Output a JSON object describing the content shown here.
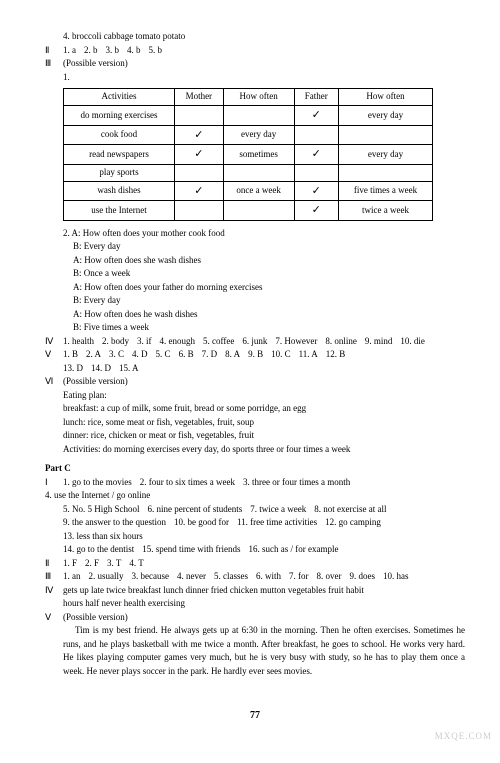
{
  "top_line": "4. broccoli   cabbage   tomato   potato",
  "sec2_label": "Ⅱ",
  "sec2_items": [
    "1. a",
    "2. b",
    "3. b",
    "4. b",
    "5. b"
  ],
  "sec3_label": "Ⅲ",
  "sec3_note": "(Possible version)",
  "sec3_num": "1.",
  "table": {
    "headers": [
      "Activities",
      "Mother",
      "How often",
      "Father",
      "How often"
    ],
    "rows": [
      [
        "do morning exercises",
        "",
        "",
        "✓",
        "every day"
      ],
      [
        "cook food",
        "✓",
        "every day",
        "",
        ""
      ],
      [
        "read newspapers",
        "✓",
        "sometimes",
        "✓",
        "every day"
      ],
      [
        "play sports",
        "",
        "",
        "",
        ""
      ],
      [
        "wash dishes",
        "✓",
        "once a week",
        "✓",
        "five times a week"
      ],
      [
        "use the Internet",
        "",
        "",
        "✓",
        "twice a week"
      ]
    ]
  },
  "dialog_num": "2.",
  "dialog_lines": [
    "A: How often does your mother cook food",
    "B: Every day",
    "A: How often does she wash dishes",
    "B: Once a week",
    "A: How often does your father do morning exercises",
    "B: Every day",
    "A: How often does he wash dishes",
    "B: Five times a week"
  ],
  "sec4_label": "Ⅳ",
  "sec4_items": [
    "1. health",
    "2. body",
    "3. if",
    "4. enough",
    "5. coffee",
    "6. junk",
    "7. However",
    "8. online",
    "9. mind",
    "10. die"
  ],
  "sec5_label": "Ⅴ",
  "sec5_items": [
    "1. B",
    "2. A",
    "3. C",
    "4. D",
    "5. C",
    "6. B",
    "7. D",
    "8. A",
    "9. B",
    "10. C",
    "11. A",
    "12. B",
    "13. D",
    "14. D",
    "15. A"
  ],
  "sec6_label": "Ⅵ",
  "sec6_note": "(Possible version)",
  "sec6_lines": [
    "Eating plan:",
    "breakfast: a cup of milk, some fruit, bread or some porridge, an egg",
    "lunch: rice, some meat or fish, vegetables, fruit, soup",
    "dinner: rice, chicken or meat or fish, vegetables, fruit",
    "Activities: do morning exercises every day, do sports three or four times a week"
  ],
  "partc": "Part C",
  "c1_label": "Ⅰ",
  "c1_items": [
    "1. go to the movies",
    "2. four to six times a week",
    "3. three or four times a month",
    "4. use the Internet / go online",
    "5. No. 5 High School",
    "6. nine percent of students",
    "7. twice a week",
    "8. not exercise at all",
    "9. the answer to the question",
    "10. be good for",
    "11. free time activities",
    "12. go camping",
    "13. less than six hours",
    "14. go to the dentist",
    "15. spend time with friends",
    "16. such as / for example"
  ],
  "c2_label": "Ⅱ",
  "c2_items": [
    "1. F",
    "2. F",
    "3. T",
    "4. T"
  ],
  "c3_label": "Ⅲ",
  "c3_items": [
    "1. an",
    "2. usually",
    "3. because",
    "4. never",
    "5. classes",
    "6. with",
    "7. for",
    "8. over",
    "9. does",
    "10. has"
  ],
  "c4_label": "Ⅳ",
  "c4_line1": "gets   up   late   twice   breakfast   lunch   dinner   fried   chicken   mutton   vegetables   fruit   habit",
  "c4_line2": "hours   half   never   health   exercising",
  "c5_label": "Ⅴ",
  "c5_note": "(Possible version)",
  "c5_para": "Tim is my best friend. He always gets up at 6:30 in the morning. Then he often exercises. Sometimes he runs, and he plays basketball with me twice a month. After breakfast, he goes to school. He works very hard. He likes playing computer games very much, but he is very busy with study, so he has to play them once a week. He never plays soccer in the park. He hardly ever sees movies.",
  "page_num": "77",
  "watermark": "MXQE.COM"
}
